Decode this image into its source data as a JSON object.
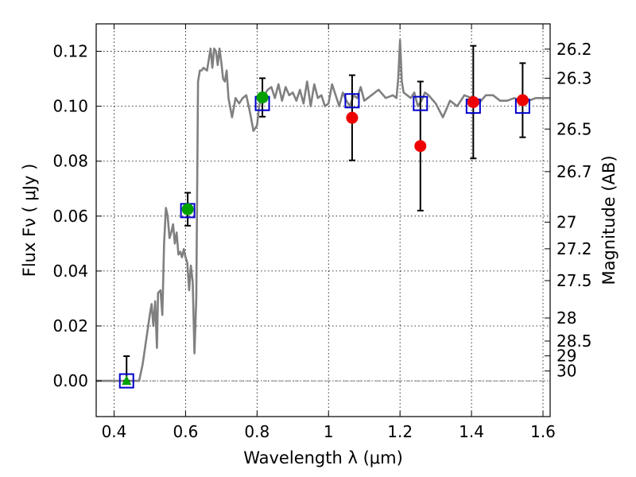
{
  "chart_data": {
    "type": "scatter",
    "xlabel": "Wavelength  λ (μm)",
    "ylabel": "Flux  Fν  ( μJy )",
    "ylabel_right": "Magnitude (AB)",
    "xlim": [
      0.35,
      1.62
    ],
    "ylim": [
      -0.013,
      0.13
    ],
    "grid": true,
    "x_ticks": [
      0.4,
      0.6,
      0.8,
      1.0,
      1.2,
      1.4,
      1.6
    ],
    "x_tick_labels": [
      "0.4",
      "0.6",
      "0.8",
      "1",
      "1.2",
      "1.4",
      "1.6"
    ],
    "y_ticks": [
      0.0,
      0.02,
      0.04,
      0.06,
      0.08,
      0.1,
      0.12
    ],
    "y_tick_labels": [
      "0.00",
      "0.02",
      "0.04",
      "0.06",
      "0.08",
      "0.10",
      "0.12"
    ],
    "right_ticks": [
      {
        "label": "26.2",
        "flux": 0.1208
      },
      {
        "label": "26.3",
        "flux": 0.1102
      },
      {
        "label": "26.5",
        "flux": 0.0917
      },
      {
        "label": "26.7",
        "flux": 0.0762
      },
      {
        "label": "27",
        "flux": 0.0578
      },
      {
        "label": "27.2",
        "flux": 0.0481
      },
      {
        "label": "27.5",
        "flux": 0.0365
      },
      {
        "label": "28",
        "flux": 0.0229
      },
      {
        "label": "28.5",
        "flux": 0.0145
      },
      {
        "label": "29",
        "flux": 0.0091
      },
      {
        "label": "30",
        "flux": 0.0036
      }
    ],
    "colors": {
      "sed": "#808080",
      "model": "#0000cc",
      "green": "#00a000",
      "red": "#ee0000",
      "error": "#000000"
    },
    "series": [
      {
        "kind": "model_spectrum",
        "x": [
          0.35,
          0.46,
          0.47,
          0.48,
          0.49,
          0.5,
          0.505,
          0.51,
          0.515,
          0.52,
          0.523,
          0.53,
          0.535,
          0.54,
          0.545,
          0.55,
          0.555,
          0.56,
          0.565,
          0.57,
          0.575,
          0.58,
          0.585,
          0.59,
          0.595,
          0.6,
          0.605,
          0.61,
          0.615,
          0.62,
          0.625,
          0.63,
          0.635,
          0.64,
          0.645,
          0.65,
          0.66,
          0.67,
          0.675,
          0.68,
          0.685,
          0.69,
          0.695,
          0.7,
          0.705,
          0.71,
          0.715,
          0.72,
          0.73,
          0.74,
          0.75,
          0.76,
          0.77,
          0.78,
          0.79,
          0.8,
          0.805,
          0.81,
          0.815,
          0.82,
          0.83,
          0.84,
          0.85,
          0.86,
          0.87,
          0.88,
          0.89,
          0.9,
          0.91,
          0.92,
          0.93,
          0.94,
          0.95,
          0.96,
          0.97,
          0.98,
          0.99,
          1.0,
          1.01,
          1.02,
          1.03,
          1.04,
          1.05,
          1.06,
          1.07,
          1.08,
          1.09,
          1.1,
          1.12,
          1.14,
          1.16,
          1.18,
          1.19,
          1.195,
          1.2,
          1.205,
          1.21,
          1.22,
          1.23,
          1.24,
          1.25,
          1.26,
          1.27,
          1.28,
          1.3,
          1.32,
          1.34,
          1.36,
          1.38,
          1.4,
          1.42,
          1.44,
          1.46,
          1.48,
          1.5,
          1.52,
          1.54,
          1.56,
          1.58,
          1.6,
          1.62
        ],
        "y": [
          0.0,
          0.0,
          0.0,
          0.006,
          0.015,
          0.024,
          0.028,
          0.02,
          0.029,
          0.012,
          0.032,
          0.033,
          0.024,
          0.05,
          0.063,
          0.06,
          0.052,
          0.054,
          0.057,
          0.05,
          0.054,
          0.046,
          0.047,
          0.045,
          0.048,
          0.045,
          0.043,
          0.033,
          0.042,
          0.036,
          0.01,
          0.03,
          0.109,
          0.113,
          0.113,
          0.114,
          0.113,
          0.121,
          0.114,
          0.121,
          0.12,
          0.115,
          0.121,
          0.116,
          0.11,
          0.109,
          0.113,
          0.103,
          0.096,
          0.103,
          0.101,
          0.103,
          0.104,
          0.098,
          0.091,
          0.093,
          0.099,
          0.103,
          0.101,
          0.104,
          0.106,
          0.107,
          0.103,
          0.108,
          0.102,
          0.107,
          0.104,
          0.105,
          0.102,
          0.106,
          0.101,
          0.109,
          0.1,
          0.108,
          0.103,
          0.104,
          0.1,
          0.101,
          0.108,
          0.104,
          0.1,
          0.105,
          0.102,
          0.1,
          0.104,
          0.103,
          0.107,
          0.102,
          0.104,
          0.106,
          0.103,
          0.104,
          0.103,
          0.11,
          0.124,
          0.109,
          0.105,
          0.104,
          0.103,
          0.105,
          0.1,
          0.102,
          0.105,
          0.104,
          0.101,
          0.096,
          0.102,
          0.1,
          0.104,
          0.103,
          0.101,
          0.104,
          0.104,
          0.102,
          0.102,
          0.103,
          0.102,
          0.102,
          0.103,
          0.103,
          0.103
        ]
      },
      {
        "kind": "model_band_flux",
        "marker": "open-square",
        "x": [
          0.435,
          0.606,
          0.815,
          1.066,
          1.257,
          1.405,
          1.543
        ],
        "y": [
          0.0,
          0.062,
          0.101,
          0.102,
          0.101,
          0.1,
          0.1
        ]
      },
      {
        "kind": "observed_flux_green",
        "marker": "filled-circle",
        "x": [
          0.606,
          0.815
        ],
        "y": [
          0.0625,
          0.1032
        ],
        "err": [
          0.006,
          0.007
        ]
      },
      {
        "kind": "observed_upper_limit_green",
        "marker": "filled-triangle",
        "x": [
          0.435
        ],
        "y": [
          0.0
        ],
        "err_upper": [
          0.009
        ]
      },
      {
        "kind": "observed_flux_red",
        "marker": "filled-circle",
        "x": [
          1.066,
          1.257,
          1.405,
          1.543
        ],
        "y": [
          0.0958,
          0.0855,
          0.1015,
          0.1022
        ],
        "err": [
          0.0155,
          0.0235,
          0.0205,
          0.0135
        ],
        "err_shift": [
          0.0,
          0.0,
          0.0,
          0.0
        ]
      }
    ]
  }
}
